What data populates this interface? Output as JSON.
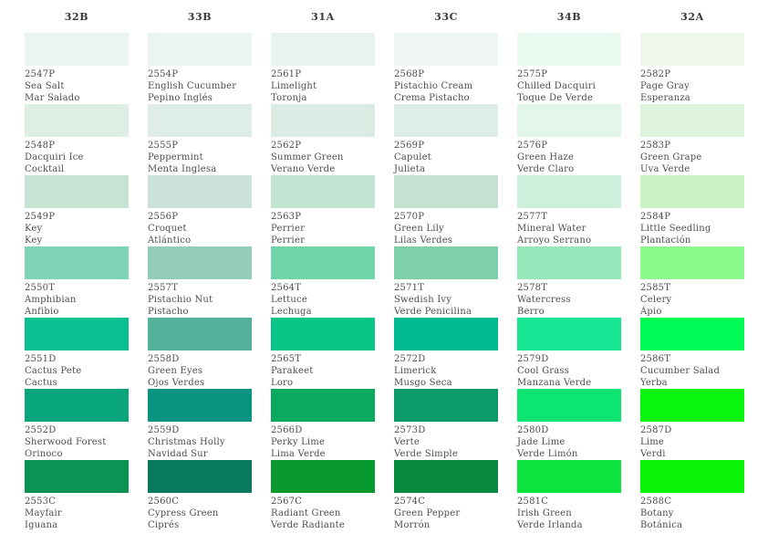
{
  "palette": {
    "columns": [
      {
        "header": "32B",
        "cells": [
          {
            "code": "2547P",
            "name_en": "Sea Salt",
            "name_es": "Mar Salado",
            "color": "#e9f5ee"
          },
          {
            "code": "2548P",
            "name_en": "Dacquiri Ice",
            "name_es": "Cocktail",
            "color": "#ddeee5"
          },
          {
            "code": "2549P",
            "name_en": "Key",
            "name_es": "Key",
            "color": "#c5e4d4"
          },
          {
            "code": "2550T",
            "name_en": "Amphibian",
            "name_es": "Anfibio",
            "color": "#7ed4b4"
          },
          {
            "code": "2551D",
            "name_en": "Cactus Pete",
            "name_es": "Cactus",
            "color": "#0abf92"
          },
          {
            "code": "2552D",
            "name_en": "Sherwood Forest",
            "name_es": "Orinoco",
            "color": "#09a57d"
          },
          {
            "code": "2553C",
            "name_en": "Mayfair",
            "name_es": "Iguana",
            "color": "#099454"
          }
        ]
      },
      {
        "header": "33B",
        "cells": [
          {
            "code": "2554P",
            "name_en": "English Cucumber",
            "name_es": "Pepino Inglés",
            "color": "#ecf4ef"
          },
          {
            "code": "2555P",
            "name_en": "Peppermint",
            "name_es": "Menta Inglesa",
            "color": "#deeee6"
          },
          {
            "code": "2556P",
            "name_en": "Croquet",
            "name_es": "Atlántico",
            "color": "#cce2d8"
          },
          {
            "code": "2557T",
            "name_en": "Pistachio Nut",
            "name_es": "Pistacho",
            "color": "#94ccba"
          },
          {
            "code": "2558D",
            "name_en": "Green Eyes",
            "name_es": "Ojos Verdes",
            "color": "#55b29a"
          },
          {
            "code": "2559D",
            "name_en": "Christmas Holly",
            "name_es": "Navidad Sur",
            "color": "#0a9480"
          },
          {
            "code": "2560C",
            "name_en": "Cypress Green",
            "name_es": "Ciprés",
            "color": "#0a7a5f"
          }
        ]
      },
      {
        "header": "31A",
        "cells": [
          {
            "code": "2561P",
            "name_en": "Limelight",
            "name_es": "Toronja",
            "color": "#e8f3ef"
          },
          {
            "code": "2562P",
            "name_en": "Summer Green",
            "name_es": "Verano Verde",
            "color": "#dcece4"
          },
          {
            "code": "2563P",
            "name_en": "Perrier",
            "name_es": "Perrier",
            "color": "#c2e4d2"
          },
          {
            "code": "2564T",
            "name_en": "Lettuce",
            "name_es": "Lechuga",
            "color": "#70d6aa"
          },
          {
            "code": "2565T",
            "name_en": "Parakeet",
            "name_es": "Loro",
            "color": "#08c487"
          },
          {
            "code": "2566D",
            "name_en": "Perky Lime",
            "name_es": "Lima Verde",
            "color": "#0aaa5e"
          },
          {
            "code": "2567C",
            "name_en": "Radiant Green",
            "name_es": "Verde Radiante",
            "color": "#089a2e"
          }
        ]
      },
      {
        "header": "33C",
        "cells": [
          {
            "code": "2568P",
            "name_en": "Pistachio Cream",
            "name_es": "Crema Pistacho",
            "color": "#eef5f2"
          },
          {
            "code": "2569P",
            "name_en": "Capulet",
            "name_es": "Julieta",
            "color": "#deeee6"
          },
          {
            "code": "2570P",
            "name_en": "Green Lily",
            "name_es": "Lilas Verdes",
            "color": "#c4e2d2"
          },
          {
            "code": "2571T",
            "name_en": "Swedish Ivy",
            "name_es": "Verde Penicilina",
            "color": "#7ed0aa"
          },
          {
            "code": "2572D",
            "name_en": "Limerick",
            "name_es": "Musgo Seca",
            "color": "#02ba90"
          },
          {
            "code": "2573D",
            "name_en": "Verte",
            "name_es": "Verde Simple",
            "color": "#099b68"
          },
          {
            "code": "2574C",
            "name_en": "Green Pepper",
            "name_es": "Morrón",
            "color": "#088a40"
          }
        ]
      },
      {
        "header": "34B",
        "cells": [
          {
            "code": "2575P",
            "name_en": "Chilled Dacquiri",
            "name_es": "Toque De Verde",
            "color": "#ebfaf0"
          },
          {
            "code": "2576P",
            "name_en": "Green Haze",
            "name_es": "Verde Claro",
            "color": "#e2f6ea"
          },
          {
            "code": "2577T",
            "name_en": "Mineral Water",
            "name_es": "Arroyo Serrano",
            "color": "#ccf0dc"
          },
          {
            "code": "2578T",
            "name_en": "Watercress",
            "name_es": "Berro",
            "color": "#96e8ba"
          },
          {
            "code": "2579D",
            "name_en": "Cool Grass",
            "name_es": "Manzana Verde",
            "color": "#18e593"
          },
          {
            "code": "2580D",
            "name_en": "Jade Lime",
            "name_es": "Verde Limón",
            "color": "#0ce670"
          },
          {
            "code": "2581C",
            "name_en": "Irish Green",
            "name_es": "Verde Irlanda",
            "color": "#0ae43c"
          }
        ]
      },
      {
        "header": "32A",
        "cells": [
          {
            "code": "2582P",
            "name_en": "Page Gray",
            "name_es": "Esperanza",
            "color": "#f0f8ec"
          },
          {
            "code": "2583P",
            "name_en": "Green Grape",
            "name_es": "Uva Verde",
            "color": "#ddf3dd"
          },
          {
            "code": "2584P",
            "name_en": "Little Seedling",
            "name_es": "Plantación",
            "color": "#caf4c6"
          },
          {
            "code": "2585T",
            "name_en": "Celery",
            "name_es": "Ápio",
            "color": "#8dfa8e"
          },
          {
            "code": "2586T",
            "name_en": "Cucumber Salad",
            "name_es": "Yerba",
            "color": "#00fa55"
          },
          {
            "code": "2587D",
            "name_en": "Lime",
            "name_es": "Verdi",
            "color": "#0af50f"
          },
          {
            "code": "2588C",
            "name_en": "Botany",
            "name_es": "Botánica",
            "color": "#0af50a"
          }
        ]
      }
    ]
  },
  "styles": {
    "background": "#ffffff",
    "header_text_color": "#383838",
    "label_text_color": "#4d4d4d"
  }
}
